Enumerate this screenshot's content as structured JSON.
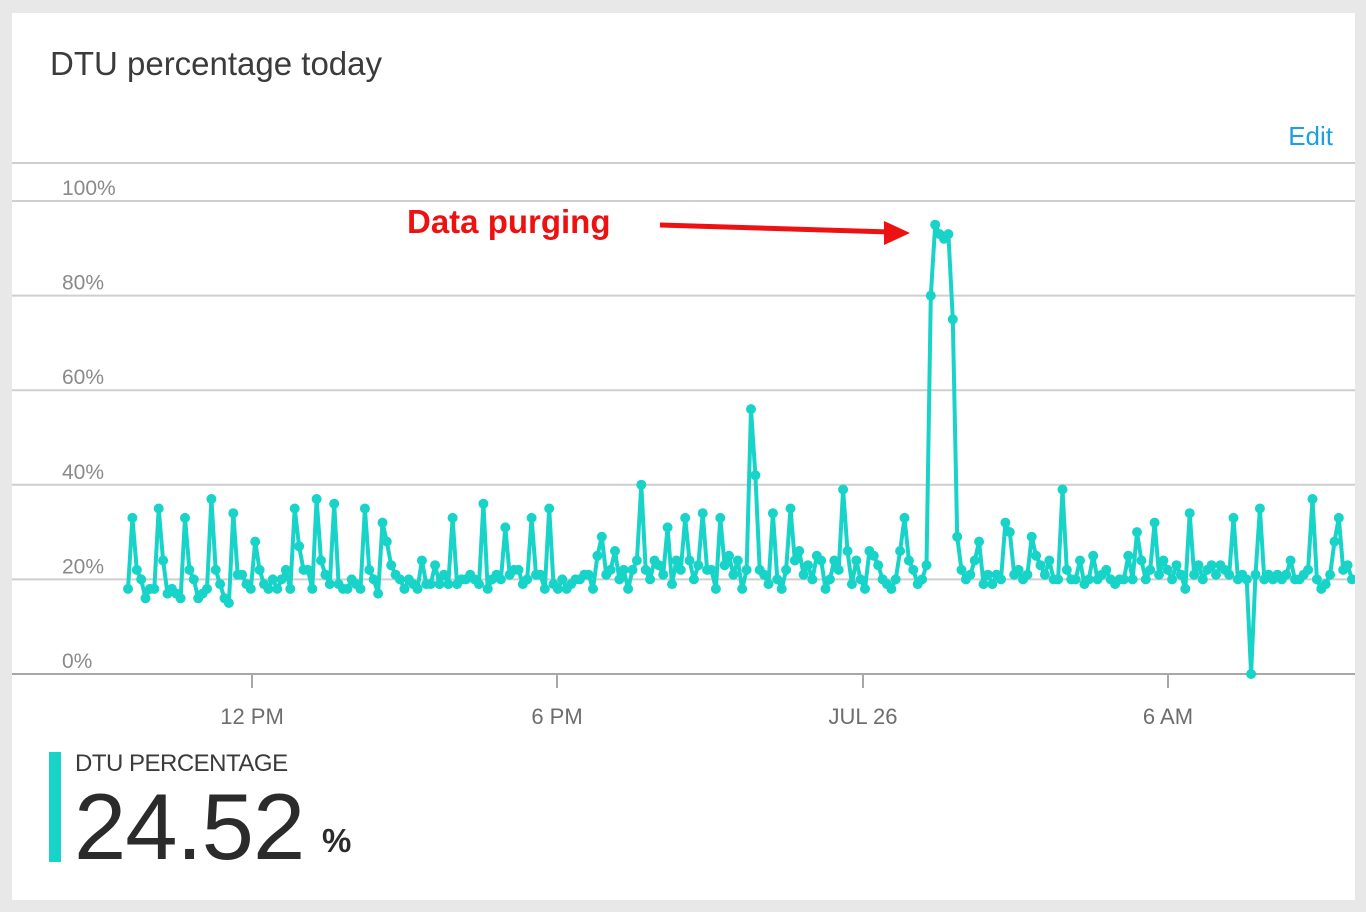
{
  "card": {
    "title": "DTU percentage today",
    "edit_label": "Edit"
  },
  "colors": {
    "series": "#17d3c8",
    "accent_bar": "#17d3c8",
    "link": "#1ba1e2",
    "annotation": "#ee1111"
  },
  "annotation": {
    "text": "Data purging"
  },
  "metric": {
    "label": "DTU PERCENTAGE",
    "value": "24.52",
    "unit": "%"
  },
  "chart_data": {
    "type": "line",
    "xlabel": "",
    "ylabel": "",
    "ylim": [
      0,
      100
    ],
    "y_ticks": [
      "0%",
      "20%",
      "40%",
      "60%",
      "80%",
      "100%"
    ],
    "x_ticks": [
      "12 PM",
      "6 PM",
      "JUL 26",
      "6 AM"
    ],
    "grid": true,
    "legend": "none",
    "series": [
      {
        "values": [
          18,
          33,
          22,
          20,
          16,
          18,
          18,
          35,
          24,
          17,
          18,
          17,
          16,
          33,
          22,
          20,
          16,
          17,
          18,
          37,
          22,
          19,
          16,
          15,
          34,
          21,
          21,
          19,
          18,
          28,
          22,
          19,
          18,
          20,
          18,
          20,
          22,
          18,
          35,
          27,
          22,
          22,
          18,
          37,
          24,
          21,
          19,
          36,
          19,
          18,
          18,
          20,
          19,
          18,
          35,
          22,
          20,
          17,
          32,
          28,
          23,
          21,
          20,
          18,
          20,
          19,
          18,
          24,
          19,
          19,
          23,
          19,
          21,
          19,
          33,
          19,
          20,
          20,
          21,
          20,
          19,
          36,
          18,
          20,
          21,
          20,
          31,
          21,
          22,
          22,
          19,
          20,
          33,
          21,
          21,
          18,
          35,
          19,
          18,
          20,
          18,
          19,
          20,
          20,
          21,
          21,
          18,
          25,
          29,
          21,
          22,
          26,
          20,
          22,
          18,
          22,
          24,
          40,
          22,
          20,
          24,
          23,
          21,
          31,
          19,
          24,
          22,
          33,
          24,
          20,
          23,
          34,
          22,
          22,
          18,
          33,
          23,
          25,
          21,
          24,
          18,
          22,
          56,
          42,
          22,
          21,
          19,
          34,
          20,
          18,
          22,
          35,
          24,
          26,
          21,
          23,
          20,
          25,
          24,
          18,
          20,
          24,
          22,
          39,
          26,
          19,
          24,
          20,
          18,
          26,
          25,
          23,
          20,
          19,
          18,
          20,
          26,
          33,
          24,
          22,
          19,
          20,
          23,
          80,
          95,
          93,
          92,
          93,
          75,
          29,
          22,
          20,
          21,
          24,
          28,
          19,
          21,
          19,
          21,
          20,
          32,
          30,
          21,
          22,
          20,
          21,
          29,
          25,
          23,
          21,
          24,
          20,
          20,
          39,
          22,
          20,
          20,
          24,
          19,
          20,
          25,
          20,
          21,
          22,
          20,
          19,
          20,
          20,
          25,
          20,
          30,
          24,
          20,
          22,
          32,
          21,
          24,
          22,
          20,
          23,
          21,
          18,
          34,
          21,
          23,
          20,
          22,
          23,
          21,
          23,
          22,
          21,
          33,
          20,
          21,
          20,
          0,
          21,
          35,
          20,
          21,
          20,
          21,
          20,
          21,
          24,
          20,
          20,
          21,
          22,
          37,
          20,
          18,
          19,
          21,
          28,
          33,
          22,
          23,
          20
        ]
      }
    ]
  }
}
